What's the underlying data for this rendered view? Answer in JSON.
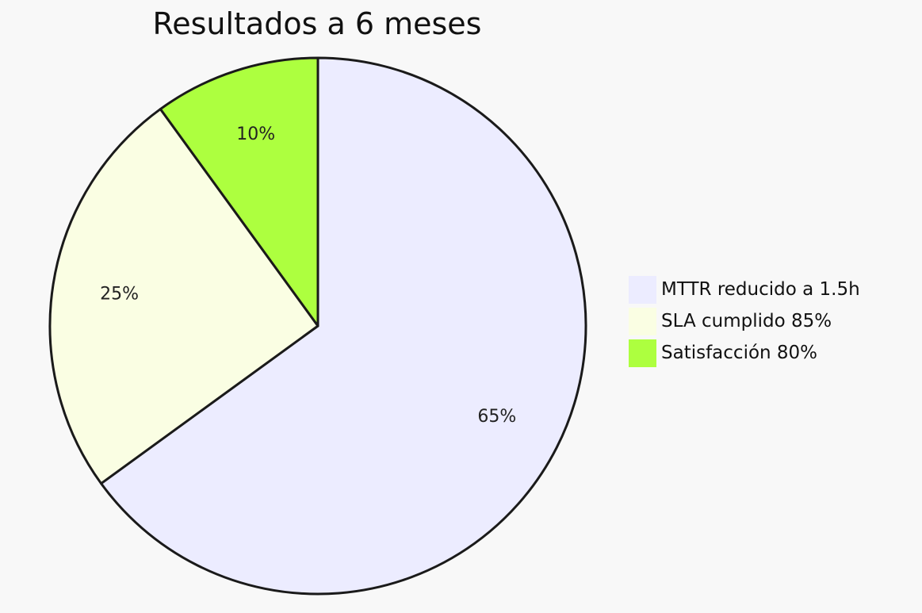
{
  "chart_data": {
    "type": "pie",
    "title": "Resultados a 6 meses",
    "slices": [
      {
        "label": "MTTR reducido a 1.5h",
        "value": 65,
        "display": "65%",
        "color": "#ECECFF"
      },
      {
        "label": "SLA cumplido 85%",
        "value": 25,
        "display": "25%",
        "color": "#FAFEE3"
      },
      {
        "label": "Satisfacción 80%",
        "value": 10,
        "display": "10%",
        "color": "#ADFF3F"
      }
    ],
    "legend_position": "right",
    "stroke_color": "#1a1a1a"
  }
}
